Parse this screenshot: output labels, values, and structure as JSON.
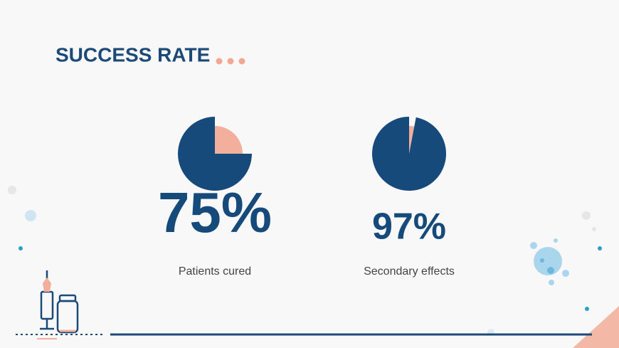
{
  "title": "SUCCESS RATE",
  "chart_data": [
    {
      "type": "pie",
      "categories": [
        "Patients cured",
        null
      ],
      "values": [
        75,
        25
      ],
      "value_labels": [
        "75%",
        null
      ],
      "colors": [
        "#154a7b",
        "#f4ae9c"
      ]
    },
    {
      "type": "pie",
      "categories": [
        "Secondary effects",
        null
      ],
      "values": [
        97,
        3
      ],
      "value_labels": [
        "97%",
        null
      ],
      "colors": [
        "#154a7b",
        "#f4ae9c"
      ]
    }
  ]
}
